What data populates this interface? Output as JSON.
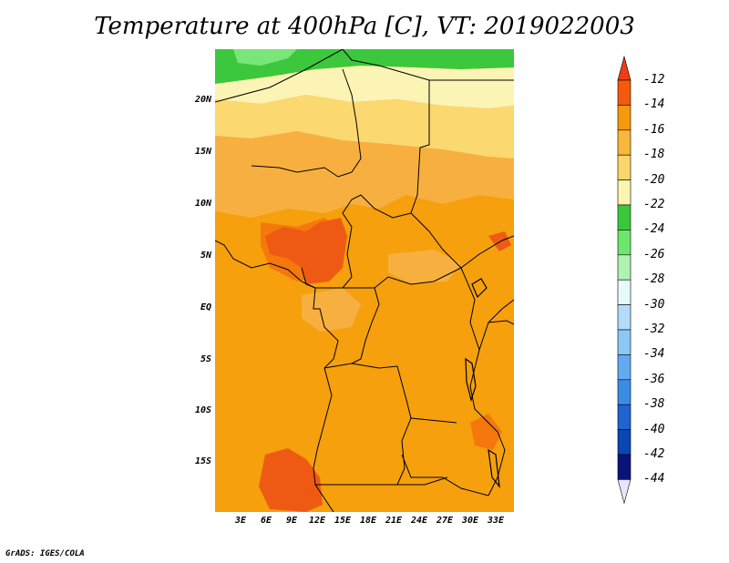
{
  "title": "Temperature at 400hPa [C], VT: 2019022003",
  "credit": "GrADS: IGES/COLA",
  "lat_ticks": [
    "20N",
    "15N",
    "10N",
    "5N",
    "EQ",
    "5S",
    "10S",
    "15S"
  ],
  "lon_ticks": [
    "3E",
    "6E",
    "9E",
    "12E",
    "15E",
    "18E",
    "21E",
    "24E",
    "27E",
    "30E",
    "33E"
  ],
  "colorbar": {
    "labels": [
      "-12",
      "-14",
      "-16",
      "-18",
      "-20",
      "-22",
      "-24",
      "-26",
      "-28",
      "-30",
      "-32",
      "-34",
      "-36",
      "-38",
      "-40",
      "-42",
      "-44"
    ],
    "colors": [
      "#e8321c",
      "#f55a0c",
      "#f59a0c",
      "#f7b63c",
      "#fbd66a",
      "#fcf5b0",
      "#3ac83a",
      "#6ee66e",
      "#b0f2b0",
      "#e6fafa",
      "#b4dcfa",
      "#8cc8f5",
      "#64aaf0",
      "#3c8ce6",
      "#1e64d2",
      "#0a46b4",
      "#0a1478"
    ],
    "top_arrow_color": "#f03c14",
    "bottom_arrow_color": "#e6e6fa"
  },
  "map_colors": {
    "base": "#f5a00c",
    "orange_dark": "#f5780c",
    "red_orange": "#ee5a14",
    "light_orange": "#f7b040",
    "yellow": "#fbd870",
    "pale_yellow": "#fcf4b4",
    "green": "#3cc83c",
    "light_green": "#78e678",
    "border": "#000000"
  }
}
